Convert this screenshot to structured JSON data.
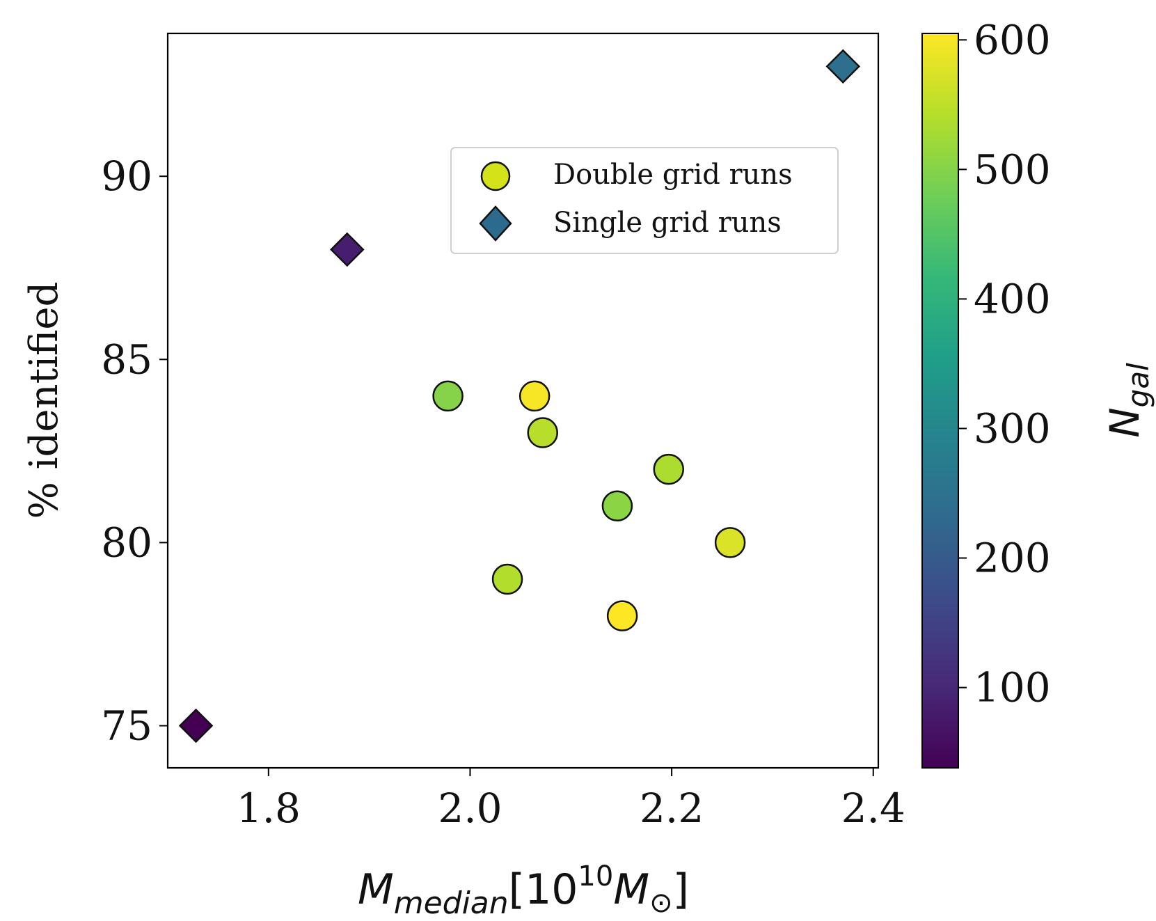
{
  "chart_data": {
    "type": "scatter",
    "xlabel": {
      "main": "M",
      "sub": "median",
      "bracket_open": "[10",
      "exp": "10",
      "unit": "M",
      "unit_sub": "⊙",
      "bracket_close": "]"
    },
    "ylabel": "% identified",
    "xlim": [
      1.7,
      2.405
    ],
    "ylim": [
      73.85,
      93.9
    ],
    "xticks": [
      1.8,
      2.0,
      2.2,
      2.4
    ],
    "xtick_labels": [
      "1.8",
      "2.0",
      "2.2",
      "2.4"
    ],
    "yticks": [
      75,
      80,
      85,
      90
    ],
    "ytick_labels": [
      "75",
      "80",
      "85",
      "90"
    ],
    "colorbar": {
      "range": [
        38,
        605
      ],
      "ticks": [
        100,
        200,
        300,
        400,
        500,
        600
      ],
      "tick_labels": [
        "100",
        "200",
        "300",
        "400",
        "500",
        "600"
      ],
      "label_main": "N",
      "label_sub": "gal",
      "colormap": [
        "#440154",
        "#482878",
        "#3e4989",
        "#31688e",
        "#26828e",
        "#1f9e89",
        "#35b779",
        "#6ece58",
        "#b5de2b",
        "#fde725"
      ]
    },
    "legend": {
      "position": "upper-right",
      "entries": [
        {
          "label": "Double grid runs",
          "marker": "circle",
          "color": "#d4e21a"
        },
        {
          "label": "Single grid runs",
          "marker": "diamond",
          "color": "#2c6a8e"
        }
      ]
    },
    "series": [
      {
        "name": "Double grid runs",
        "marker": "circle",
        "points": [
          {
            "x": 1.978,
            "y": 84,
            "ngal": 500
          },
          {
            "x": 2.064,
            "y": 84,
            "ngal": 600
          },
          {
            "x": 2.072,
            "y": 83,
            "ngal": 545
          },
          {
            "x": 2.197,
            "y": 82,
            "ngal": 535
          },
          {
            "x": 2.146,
            "y": 81,
            "ngal": 505
          },
          {
            "x": 2.258,
            "y": 80,
            "ngal": 575
          },
          {
            "x": 2.037,
            "y": 79,
            "ngal": 540
          },
          {
            "x": 2.151,
            "y": 78,
            "ngal": 605
          }
        ]
      },
      {
        "name": "Single grid runs",
        "marker": "diamond",
        "points": [
          {
            "x": 1.728,
            "y": 75,
            "ngal": 38
          },
          {
            "x": 1.878,
            "y": 88,
            "ngal": 85
          },
          {
            "x": 2.37,
            "y": 93,
            "ngal": 245
          }
        ]
      }
    ]
  }
}
